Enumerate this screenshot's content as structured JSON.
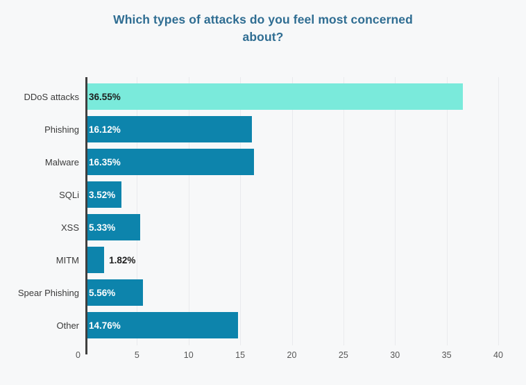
{
  "title": "Which types of attacks do you feel most concerned about?",
  "colors": {
    "background": "#f7f8f9",
    "title": "#2f6d92",
    "bar_default": "#0d84ac",
    "bar_highlight": "#7aeadb",
    "axis_line": "#3f3f3f",
    "gridline": "#e9eaed",
    "tick_label": "#555555",
    "category_label": "#3a3a3a",
    "value_label_on_dark": "#ffffff",
    "value_label_on_light": "#1d1d1d"
  },
  "chart_data": {
    "type": "bar",
    "orientation": "horizontal",
    "title": "Which types of attacks do you feel most concerned about?",
    "categories": [
      "DDoS attacks",
      "Phishing",
      "Malware",
      "SQLi",
      "XSS",
      "MITM",
      "Spear Phishing",
      "Other"
    ],
    "values": [
      36.55,
      16.12,
      16.35,
      3.52,
      5.33,
      1.82,
      5.56,
      14.76
    ],
    "value_labels": [
      "36.55%",
      "16.12%",
      "16.35%",
      "3.52%",
      "5.33%",
      "1.82%",
      "5.56%",
      "14.76%"
    ],
    "highlight_index": 0,
    "label_outside_index": 5,
    "xlabel": "",
    "ylabel": "",
    "xlim": [
      0,
      40
    ],
    "xticks": [
      0,
      5,
      10,
      15,
      20,
      25,
      30,
      35,
      40
    ],
    "grid": "vertical",
    "legend": "none"
  }
}
